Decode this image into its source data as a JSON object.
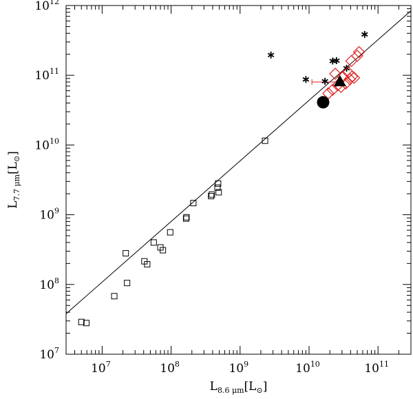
{
  "chart_data": {
    "type": "scatter",
    "title": "",
    "x_scale": "log",
    "y_scale": "log",
    "xlim": [
      3000000,
      300000000000
    ],
    "ylim": [
      10000000,
      1000000000000
    ],
    "xlabel": {
      "main": "L",
      "sub": "8.6 μm",
      "unit": "[L",
      "unit_sym": "⊙",
      "unit_end": "]"
    },
    "ylabel": {
      "main": "L",
      "sub": "7.7 μm",
      "unit": "[L",
      "unit_sym": "⊙",
      "unit_end": "]"
    },
    "x_ticks": [
      {
        "base": "10",
        "exp": "7"
      },
      {
        "base": "10",
        "exp": "8"
      },
      {
        "base": "10",
        "exp": "9"
      },
      {
        "base": "10",
        "exp": "10"
      },
      {
        "base": "10",
        "exp": "11"
      }
    ],
    "y_ticks": [
      {
        "base": "10",
        "exp": "7"
      },
      {
        "base": "10",
        "exp": "8"
      },
      {
        "base": "10",
        "exp": "9"
      },
      {
        "base": "10",
        "exp": "10"
      },
      {
        "base": "10",
        "exp": "11"
      },
      {
        "base": "10",
        "exp": "12"
      }
    ],
    "fit_line": {
      "x": [
        3000000,
        300000000000
      ],
      "y": [
        38000000,
        840000000000
      ]
    },
    "series": [
      {
        "marker": "open-square",
        "color": "#000000",
        "points": [
          {
            "x": 5000000,
            "y": 29000000
          },
          {
            "x": 5900000,
            "y": 28000000
          },
          {
            "x": 15000000,
            "y": 68000000
          },
          {
            "x": 22000000,
            "y": 280000000
          },
          {
            "x": 23000000,
            "y": 105000000
          },
          {
            "x": 41000000,
            "y": 215000000
          },
          {
            "x": 45000000,
            "y": 195000000
          },
          {
            "x": 56000000,
            "y": 400000000
          },
          {
            "x": 70000000,
            "y": 340000000
          },
          {
            "x": 76000000,
            "y": 310000000
          },
          {
            "x": 97000000,
            "y": 560000000
          },
          {
            "x": 165000000,
            "y": 880000000
          },
          {
            "x": 167000000,
            "y": 920000000
          },
          {
            "x": 210000000,
            "y": 1470000000
          },
          {
            "x": 380000000,
            "y": 1850000000
          },
          {
            "x": 390000000,
            "y": 1950000000
          },
          {
            "x": 470000000,
            "y": 2450000000
          },
          {
            "x": 480000000,
            "y": 2800000000
          },
          {
            "x": 490000000,
            "y": 2100000000
          },
          {
            "x": 2300000000,
            "y": 11500000000
          }
        ]
      },
      {
        "marker": "asterisk",
        "color": "#000000",
        "points": [
          {
            "x": 2800000000,
            "y": 195000000000
          },
          {
            "x": 9000000000,
            "y": 87000000000
          },
          {
            "x": 17000000000,
            "y": 82000000000
          },
          {
            "x": 22000000000,
            "y": 160000000000
          },
          {
            "x": 25000000000,
            "y": 162000000000
          },
          {
            "x": 35000000000,
            "y": 126000000000
          },
          {
            "x": 64000000000,
            "y": 385000000000
          }
        ]
      },
      {
        "marker": "open-diamond",
        "color": "#e02020",
        "points": [
          {
            "x": 19000000000,
            "y": 55000000000
          },
          {
            "x": 22000000000,
            "y": 62000000000
          },
          {
            "x": 24000000000,
            "y": 105000000000
          },
          {
            "x": 26000000000,
            "y": 72000000000
          },
          {
            "x": 29000000000,
            "y": 68000000000
          },
          {
            "x": 31000000000,
            "y": 95000000000
          },
          {
            "x": 34000000000,
            "y": 76000000000
          },
          {
            "x": 37000000000,
            "y": 110000000000
          },
          {
            "x": 39000000000,
            "y": 88000000000
          },
          {
            "x": 42000000000,
            "y": 96000000000
          },
          {
            "x": 45000000000,
            "y": 92000000000
          },
          {
            "x": 41000000000,
            "y": 160000000000
          },
          {
            "x": 50000000000,
            "y": 190000000000
          },
          {
            "x": 53000000000,
            "y": 215000000000
          }
        ]
      },
      {
        "marker": "filled-circle",
        "color": "#000000",
        "points": [
          {
            "x": 16000000000,
            "y": 41000000000
          }
        ]
      },
      {
        "marker": "filled-triangle",
        "color": "#000000",
        "points": [
          {
            "x": 28000000000,
            "y": 82000000000
          }
        ]
      }
    ],
    "error_bar": {
      "color": "#e02020",
      "x_from": 11000000000,
      "x_to": 24000000000,
      "y": 80000000000
    },
    "grid": false,
    "legend": "none"
  }
}
